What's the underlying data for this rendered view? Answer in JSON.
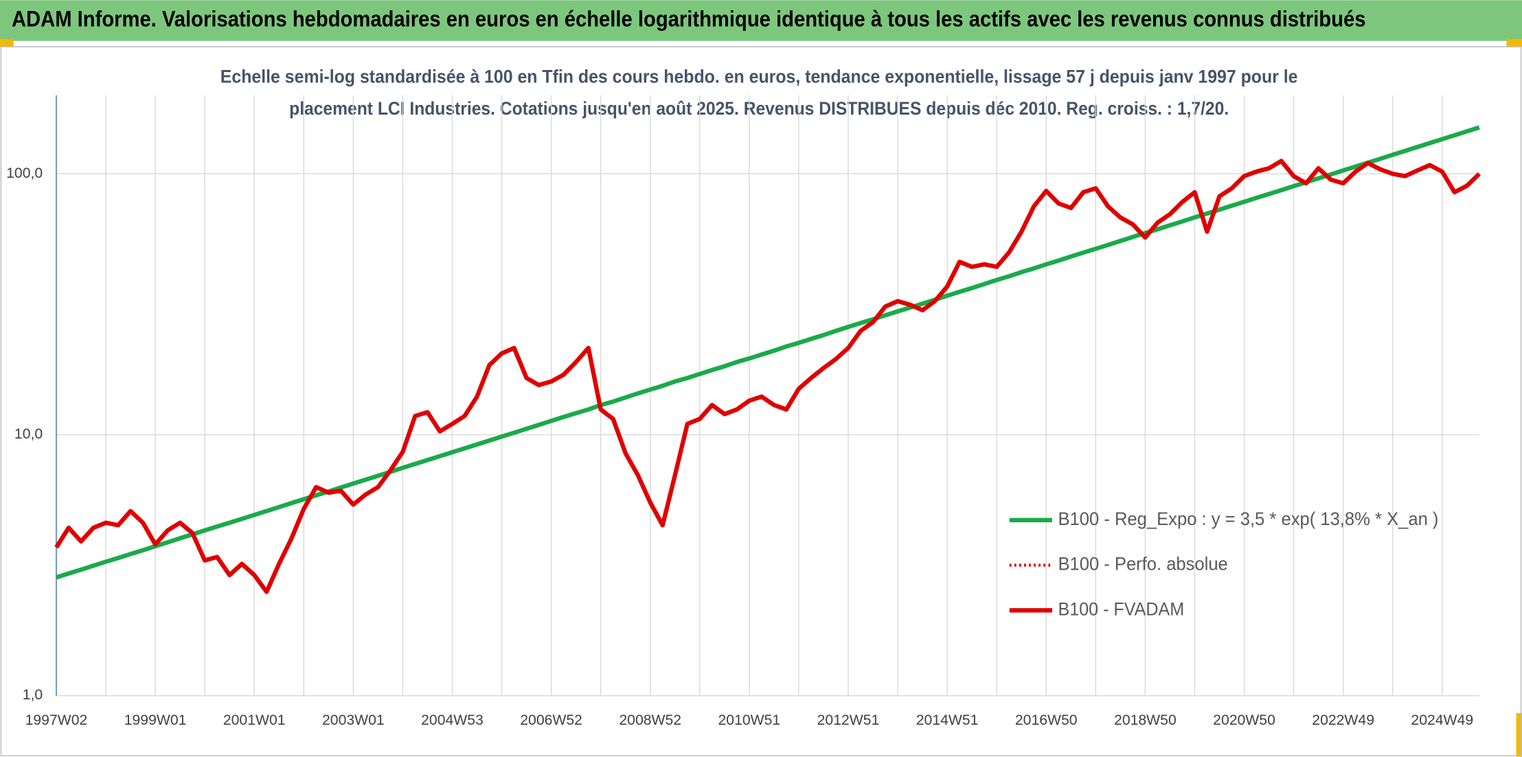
{
  "header": "ADAM Informe. Valorisations hebdomadaires en euros en échelle logarithmique identique à tous les actifs avec les revenus connus distribués",
  "chart_data": {
    "type": "line",
    "title": [
      "Echelle semi-log standardisée à 100 en Tfin des cours hebdo. en euros, tendance exponentielle, lissage 57 j depuis janv 1997 pour le",
      "placement LCI Industries. Cotations jusqu'en août 2025. Revenus DISTRIBUES depuis déc 2010. Reg. croiss. : 1,7/20."
    ],
    "log_scale": true,
    "grid": true,
    "legend": "lower-right",
    "ylim": [
      1,
      200
    ],
    "yticks": [
      {
        "value": 1,
        "label": "1,0"
      },
      {
        "value": 10,
        "label": "10,0"
      },
      {
        "value": 100,
        "label": "100,0"
      }
    ],
    "categories": [
      "1997W02",
      null,
      null,
      null,
      null,
      null,
      null,
      null,
      "1999W01",
      null,
      null,
      null,
      null,
      null,
      null,
      null,
      "2001W01",
      null,
      null,
      null,
      null,
      null,
      null,
      null,
      "2003W01",
      null,
      null,
      null,
      null,
      null,
      null,
      null,
      "2004W53",
      null,
      null,
      null,
      null,
      null,
      null,
      null,
      "2006W52",
      null,
      null,
      null,
      null,
      null,
      null,
      null,
      "2008W52",
      null,
      null,
      null,
      null,
      null,
      null,
      null,
      "2010W51",
      null,
      null,
      null,
      null,
      null,
      null,
      null,
      "2012W51",
      null,
      null,
      null,
      null,
      null,
      null,
      null,
      "2014W51",
      null,
      null,
      null,
      null,
      null,
      null,
      null,
      "2016W50",
      null,
      null,
      null,
      null,
      null,
      null,
      null,
      "2018W50",
      null,
      null,
      null,
      null,
      null,
      null,
      null,
      "2020W50",
      null,
      null,
      null,
      null,
      null,
      null,
      null,
      "2022W49",
      null,
      null,
      null,
      null,
      null,
      null,
      null,
      "2024W49",
      null,
      null,
      null
    ],
    "series": [
      {
        "name": "B100 - Reg_Expo : y = 3,5 * exp( 13,8% *  X_an )",
        "color": "#1aaa4a",
        "style": "solid",
        "values": [
          2.84,
          2.94,
          3.04,
          3.15,
          3.26,
          3.37,
          3.49,
          3.61,
          3.74,
          3.87,
          4.01,
          4.15,
          4.3,
          4.45,
          4.6,
          4.76,
          4.93,
          5.1,
          5.28,
          5.47,
          5.66,
          5.86,
          6.06,
          6.28,
          6.5,
          6.73,
          6.96,
          7.21,
          7.47,
          7.73,
          8.0,
          8.28,
          8.57,
          8.87,
          9.18,
          9.5,
          9.84,
          10.18,
          10.54,
          10.91,
          11.3,
          11.7,
          12.1,
          12.5,
          13.0,
          13.4,
          13.9,
          14.4,
          14.9,
          15.4,
          16.0,
          16.5,
          17.1,
          17.7,
          18.3,
          19.0,
          19.6,
          20.3,
          21.0,
          21.8,
          22.5,
          23.3,
          24.1,
          25.0,
          25.9,
          26.8,
          27.7,
          28.7,
          29.7,
          30.7,
          31.8,
          32.9,
          34.1,
          35.3,
          36.5,
          37.8,
          39.2,
          40.5,
          42.0,
          43.4,
          45.0,
          46.5,
          48.2,
          49.9,
          51.6,
          53.4,
          55.3,
          57.3,
          59.3,
          61.3,
          63.5,
          65.7,
          68.1,
          70.4,
          72.9,
          75.5,
          78.1,
          80.9,
          83.7,
          86.6,
          89.7,
          92.8,
          96.1,
          99.5,
          103,
          106.6,
          110.3,
          114.2,
          118.3,
          122.4,
          126.7,
          131.2,
          135.8,
          140.5,
          145.5,
          150.6
        ]
      },
      {
        "name": "B100 - Perfo. absolue",
        "color": "#e00000",
        "style": "dotted",
        "values": [
          3.7,
          4.4,
          3.9,
          4.4,
          4.6,
          4.5,
          5.1,
          4.6,
          3.8,
          4.3,
          4.6,
          4.2,
          3.3,
          3.4,
          2.9,
          3.2,
          2.9,
          2.5,
          3.2,
          4.0,
          5.2,
          6.3,
          6.0,
          6.1,
          5.4,
          5.9,
          6.3,
          7.3,
          8.6,
          11.8,
          12.2,
          10.3,
          11.0,
          11.8,
          14.0,
          18.5,
          20.5,
          21.5,
          16.5,
          15.5,
          16.0,
          17.0,
          19.0,
          21.5,
          12.5,
          11.5,
          8.5,
          7.0,
          5.5,
          4.5,
          7.0,
          11.0,
          11.5,
          13.0,
          12.0,
          12.5,
          13.5,
          14.0,
          13.0,
          12.5,
          15.0,
          16.5,
          18.0,
          19.5,
          21.5,
          25.0,
          27.0,
          31.0,
          32.5,
          31.5,
          30.0,
          32.5,
          37.0,
          46.0,
          44.0,
          45.0,
          44.0,
          50.0,
          60.0,
          75.0,
          86.0,
          77.0,
          74.0,
          85.0,
          88.0,
          75.0,
          68.0,
          64.0,
          57.0,
          65.0,
          70.0,
          78.0,
          85.0,
          60.0,
          82.0,
          88.0,
          98.0,
          102.0,
          105.0,
          112.0,
          98.0,
          92.0,
          105.0,
          95.0,
          92.0,
          102.0,
          110.0,
          104.0,
          100.0,
          98.0,
          103.0,
          108.0,
          102.0,
          85.0,
          90.0,
          100.0
        ]
      },
      {
        "name": "B100 - FVADAM",
        "color": "#e00000",
        "style": "solid",
        "values": [
          3.7,
          4.4,
          3.9,
          4.4,
          4.6,
          4.5,
          5.1,
          4.6,
          3.8,
          4.3,
          4.6,
          4.2,
          3.3,
          3.4,
          2.9,
          3.2,
          2.9,
          2.5,
          3.2,
          4.0,
          5.2,
          6.3,
          6.0,
          6.1,
          5.4,
          5.9,
          6.3,
          7.3,
          8.6,
          11.8,
          12.2,
          10.3,
          11.0,
          11.8,
          14.0,
          18.5,
          20.5,
          21.5,
          16.5,
          15.5,
          16.0,
          17.0,
          19.0,
          21.5,
          12.5,
          11.5,
          8.5,
          7.0,
          5.5,
          4.5,
          7.0,
          11.0,
          11.5,
          13.0,
          12.0,
          12.5,
          13.5,
          14.0,
          13.0,
          12.5,
          15.0,
          16.5,
          18.0,
          19.5,
          21.5,
          25.0,
          27.0,
          31.0,
          32.5,
          31.5,
          30.0,
          32.5,
          37.0,
          46.0,
          44.0,
          45.0,
          44.0,
          50.0,
          60.0,
          75.0,
          86.0,
          77.0,
          74.0,
          85.0,
          88.0,
          75.0,
          68.0,
          64.0,
          57.0,
          65.0,
          70.0,
          78.0,
          85.0,
          60.0,
          82.0,
          88.0,
          98.0,
          102.0,
          105.0,
          112.0,
          98.0,
          92.0,
          105.0,
          95.0,
          92.0,
          102.0,
          110.0,
          104.0,
          100.0,
          98.0,
          103.0,
          108.0,
          102.0,
          85.0,
          90.0,
          100.0
        ]
      }
    ]
  }
}
